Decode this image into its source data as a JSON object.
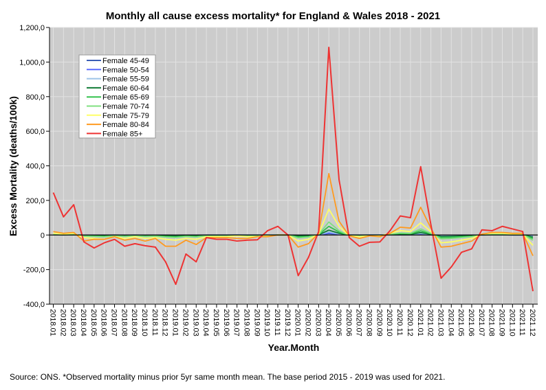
{
  "chart_data": {
    "type": "line",
    "title": "Monthly all cause excess mortality* for England & Wales 2018 - 2021",
    "xlabel": "Year.Month",
    "ylabel": "Excess Mortality (deaths/100k)",
    "ylim": [
      -400,
      1200
    ],
    "yticks": [
      -400,
      -200,
      0,
      200,
      400,
      600,
      800,
      1000,
      1200
    ],
    "ytick_labels": [
      "-400,0",
      "-200,0",
      "0",
      "200,0",
      "400,0",
      "600,0",
      "800,0",
      "1,000,0",
      "1,200,0"
    ],
    "grid": true,
    "legend_position": "top-left",
    "categories": [
      "2018.01",
      "2018.02",
      "2018.03",
      "2018.04",
      "2018.05",
      "2018.06",
      "2018.07",
      "2018.08",
      "2018.09",
      "2018.10",
      "2018.11",
      "2018.12",
      "2019.01",
      "2019.02",
      "2019.03",
      "2019.04",
      "2019.05",
      "2019.06",
      "2019.07",
      "2019.08",
      "2019.09",
      "2019.10",
      "2019.11",
      "2019.12",
      "2020.01",
      "2020.02",
      "2020.03",
      "2020.04",
      "2020.05",
      "2020.06",
      "2020.07",
      "2020.08",
      "2020.09",
      "2020.10",
      "2020.11",
      "2020.12",
      "2021.01",
      "2021.02",
      "2021.03",
      "2021.04",
      "2021.05",
      "2021.06",
      "2021.07",
      "2021.08",
      "2021.09",
      "2021.10",
      "2021.11",
      "2021.12"
    ],
    "series": [
      {
        "name": "Female 45-49",
        "color": "#3a5db5",
        "values": [
          1,
          0,
          1,
          -1,
          -1,
          -1,
          0,
          -1,
          0,
          -1,
          -1,
          -1,
          -2,
          -1,
          -1,
          0,
          0,
          0,
          0,
          0,
          0,
          0,
          0,
          0,
          -2,
          -1,
          0,
          8,
          3,
          0,
          0,
          0,
          0,
          1,
          1,
          1,
          4,
          1,
          -2,
          -2,
          -1,
          -1,
          0,
          1,
          1,
          0,
          0,
          -3
        ]
      },
      {
        "name": "Female 50-54",
        "color": "#5a6cff",
        "values": [
          1,
          1,
          1,
          -1,
          -1,
          -2,
          -1,
          -2,
          -1,
          -2,
          -1,
          -2,
          -3,
          -2,
          -2,
          -1,
          -1,
          -1,
          0,
          -1,
          -1,
          0,
          0,
          0,
          -3,
          -2,
          0,
          12,
          4,
          0,
          -1,
          0,
          0,
          1,
          2,
          2,
          6,
          2,
          -4,
          -3,
          -2,
          -2,
          0,
          1,
          1,
          0,
          0,
          -5
        ]
      },
      {
        "name": "Female 55-59",
        "color": "#9cc3e8",
        "values": [
          2,
          1,
          2,
          -2,
          -2,
          -3,
          -1,
          -2,
          -1,
          -2,
          -2,
          -3,
          -4,
          -2,
          -3,
          -1,
          -1,
          -1,
          -1,
          -1,
          -1,
          0,
          0,
          0,
          -4,
          -3,
          1,
          18,
          6,
          0,
          -1,
          0,
          0,
          1,
          3,
          3,
          9,
          3,
          -6,
          -5,
          -4,
          -3,
          0,
          1,
          1,
          1,
          1,
          -8
        ]
      },
      {
        "name": "Female 60-64",
        "color": "#0f7a34",
        "values": [
          2,
          1,
          2,
          -3,
          -3,
          -4,
          -2,
          -3,
          -2,
          -3,
          -3,
          -4,
          -6,
          -4,
          -5,
          -2,
          -2,
          -2,
          -1,
          -2,
          -2,
          -1,
          0,
          0,
          -6,
          -4,
          1,
          28,
          10,
          -1,
          -2,
          -1,
          -1,
          2,
          5,
          4,
          14,
          4,
          -9,
          -8,
          -6,
          -4,
          1,
          2,
          2,
          1,
          1,
          -12
        ]
      },
      {
        "name": "Female 65-69",
        "color": "#33c24d",
        "values": [
          4,
          2,
          3,
          -5,
          -6,
          -7,
          -3,
          -6,
          -3,
          -6,
          -5,
          -8,
          -10,
          -6,
          -8,
          -3,
          -3,
          -3,
          -2,
          -3,
          -3,
          -1,
          0,
          0,
          -11,
          -8,
          2,
          50,
          17,
          -2,
          -3,
          -2,
          -2,
          3,
          8,
          7,
          24,
          7,
          -15,
          -13,
          -10,
          -7,
          1,
          3,
          3,
          2,
          2,
          -20
        ]
      },
      {
        "name": "Female 70-74",
        "color": "#7fe07f",
        "values": [
          5,
          3,
          5,
          -7,
          -9,
          -11,
          -5,
          -9,
          -5,
          -9,
          -7,
          -12,
          -15,
          -9,
          -12,
          -5,
          -5,
          -5,
          -3,
          -5,
          -5,
          -2,
          0,
          0,
          -17,
          -12,
          3,
          75,
          25,
          -3,
          -5,
          -3,
          -3,
          5,
          12,
          10,
          35,
          10,
          -22,
          -20,
          -15,
          -10,
          2,
          5,
          5,
          3,
          3,
          -30
        ]
      },
      {
        "name": "Female 75-79",
        "color": "#ffff66",
        "values": [
          10,
          5,
          10,
          -15,
          -20,
          -25,
          -10,
          -20,
          -10,
          -20,
          -15,
          -25,
          -30,
          -20,
          -25,
          -10,
          -10,
          -10,
          -5,
          -10,
          -10,
          -5,
          0,
          0,
          -35,
          -25,
          5,
          150,
          50,
          -5,
          -10,
          -5,
          -5,
          10,
          25,
          20,
          70,
          20,
          -45,
          -40,
          -30,
          -20,
          5,
          10,
          10,
          5,
          5,
          -60
        ]
      },
      {
        "name": "Female 80-84",
        "color": "#ff9a1f",
        "values": [
          20,
          10,
          15,
          -35,
          -25,
          -25,
          -10,
          -30,
          -20,
          -35,
          -20,
          -65,
          -65,
          -30,
          -55,
          -15,
          -15,
          -15,
          -20,
          -20,
          -10,
          -10,
          0,
          0,
          -70,
          -50,
          10,
          355,
          80,
          -5,
          -20,
          -5,
          -10,
          10,
          45,
          40,
          160,
          40,
          -70,
          -65,
          -50,
          -35,
          5,
          15,
          15,
          10,
          10,
          -120
        ]
      },
      {
        "name": "Female 85+",
        "color": "#ee3333",
        "values": [
          245,
          105,
          175,
          -40,
          -75,
          -45,
          -25,
          -65,
          -50,
          -62,
          -70,
          -155,
          -285,
          -110,
          -155,
          -15,
          -25,
          -25,
          -35,
          -30,
          -28,
          25,
          50,
          0,
          -235,
          -130,
          20,
          1085,
          320,
          -15,
          -65,
          -42,
          -40,
          25,
          110,
          100,
          395,
          60,
          -250,
          -185,
          -100,
          -80,
          30,
          25,
          50,
          35,
          20,
          -325
        ]
      }
    ]
  },
  "footnote": "Source: ONS. *Observed mortality minus prior 5yr same month mean. The base period 2015 - 2019 was used for 2021."
}
